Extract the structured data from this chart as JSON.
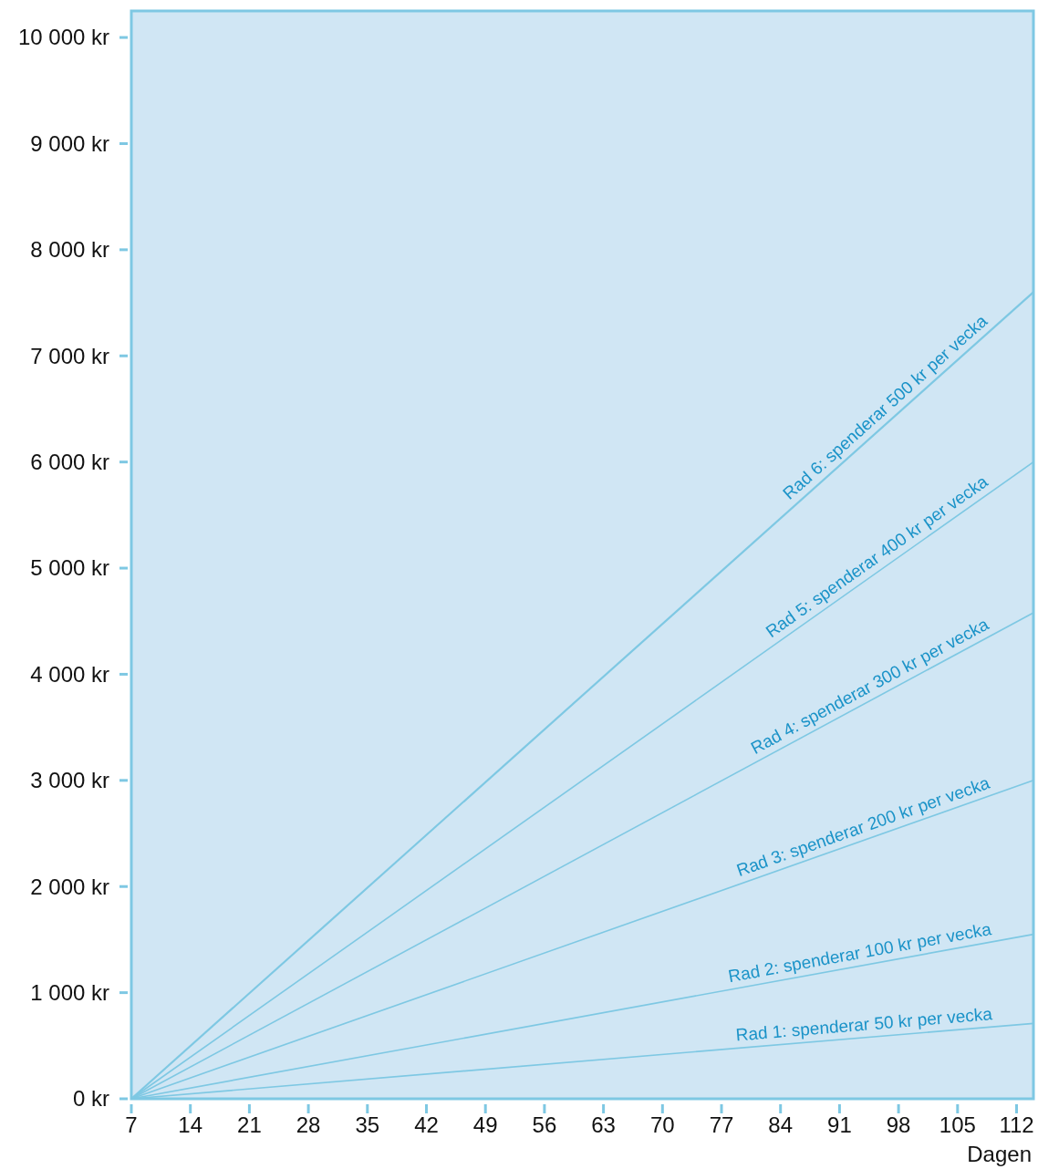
{
  "chart_data": {
    "type": "line",
    "xlabel": "Dagen",
    "xlim": [
      7,
      114
    ],
    "xticks": [
      7,
      14,
      21,
      28,
      35,
      42,
      49,
      56,
      63,
      70,
      77,
      84,
      91,
      98,
      105,
      112
    ],
    "ylim": [
      0,
      10250
    ],
    "yticks": [
      {
        "value": 0,
        "label": "0 kr"
      },
      {
        "value": 1000,
        "label": "1 000 kr"
      },
      {
        "value": 2000,
        "label": "2 000 kr"
      },
      {
        "value": 3000,
        "label": "3 000 kr"
      },
      {
        "value": 4000,
        "label": "4 000 kr"
      },
      {
        "value": 5000,
        "label": "5 000 kr"
      },
      {
        "value": 6000,
        "label": "6 000 kr"
      },
      {
        "value": 7000,
        "label": "7 000 kr"
      },
      {
        "value": 8000,
        "label": "8 000 kr"
      },
      {
        "value": 9000,
        "label": "9 000 kr"
      },
      {
        "value": 10000,
        "label": "10 000 kr"
      }
    ],
    "x": [
      7,
      114
    ],
    "grid": false,
    "marker": "none",
    "line_style": "solid",
    "series": [
      {
        "name": "Rad 1: spenderar 50 kr per vecka",
        "color": "#7ec8e3",
        "values": [
          0,
          710
        ]
      },
      {
        "name": "Rad 2: spenderar 100 kr per vecka",
        "color": "#7ec8e3",
        "values": [
          0,
          1550
        ]
      },
      {
        "name": "Rad 3: spenderar 200 kr per vecka",
        "color": "#7ec8e3",
        "values": [
          0,
          3000
        ]
      },
      {
        "name": "Rad 4: spenderar 300 kr per vecka",
        "color": "#7ec8e3",
        "values": [
          0,
          4580
        ]
      },
      {
        "name": "Rad 5: spenderar 400 kr per vecka",
        "color": "#7ec8e3",
        "values": [
          0,
          6000
        ]
      },
      {
        "name": "Rad 6: spenderar 500 kr per vecka",
        "color": "#7ec8e3",
        "values": [
          0,
          7600
        ]
      }
    ]
  }
}
